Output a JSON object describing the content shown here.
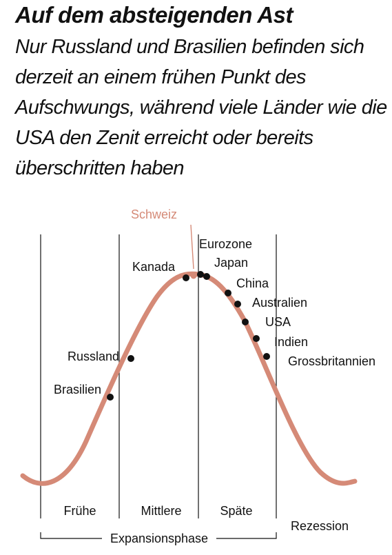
{
  "headline": "Auf dem absteigenden Ast",
  "subtitle": "Nur Russland und Brasilien befinden sich derzeit an einem frühen Punkt des Aufschwungs, während viele Länder wie die USA den Zenit erreicht oder bereits überschritten haben",
  "colors": {
    "curve": "#d58a77",
    "highlight": "#d58a77",
    "dot": "#111111",
    "divider": "#111111"
  },
  "phases": [
    "Frühe",
    "Mittlere",
    "Späte",
    "Rezession"
  ],
  "expansion_label": "Expansionsphase",
  "highlight_country": "Schweiz",
  "countries": [
    "Brasilien",
    "Russland",
    "Kanada",
    "Eurozone",
    "Japan",
    "China",
    "Australien",
    "USA",
    "Indien",
    "Grossbritannien"
  ]
}
